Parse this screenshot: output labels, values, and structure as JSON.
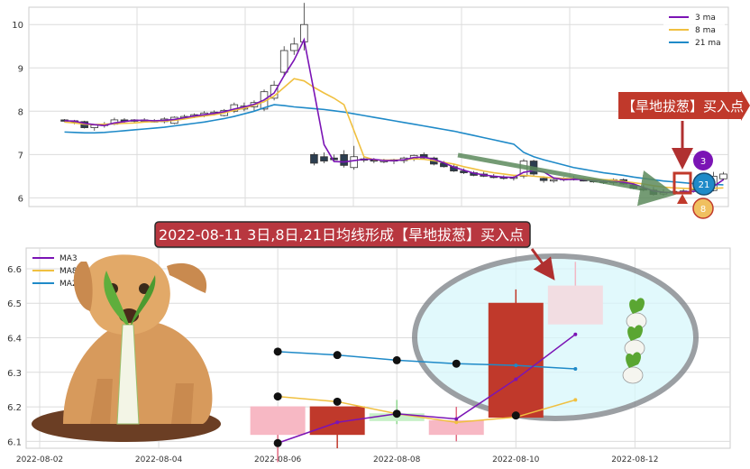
{
  "chart_data": [
    {
      "type": "candlestick",
      "ylim": [
        5.8,
        10.4
      ],
      "yticks": [
        "6",
        "7",
        "8",
        "9",
        "10"
      ],
      "grid": true,
      "legend": {
        "placement": "top-right",
        "entries": [
          "3 ma",
          "8 ma",
          "21 ma"
        ]
      },
      "colors": {
        "up": "#c0392b",
        "down": "#2c3e50",
        "ma3": "#7b14b5",
        "ma8": "#f0c040",
        "ma21": "#1f8ac8",
        "grid": "#dcdcdc"
      },
      "candles": [
        [
          7.8,
          7.82,
          7.75,
          7.78
        ],
        [
          7.78,
          7.8,
          7.7,
          7.76
        ],
        [
          7.76,
          7.78,
          7.6,
          7.62
        ],
        [
          7.62,
          7.7,
          7.55,
          7.68
        ],
        [
          7.68,
          7.75,
          7.62,
          7.7
        ],
        [
          7.7,
          7.85,
          7.68,
          7.8
        ],
        [
          7.8,
          7.84,
          7.72,
          7.78
        ],
        [
          7.78,
          7.82,
          7.74,
          7.8
        ],
        [
          7.8,
          7.84,
          7.76,
          7.78
        ],
        [
          7.78,
          7.82,
          7.74,
          7.76
        ],
        [
          7.76,
          7.86,
          7.72,
          7.82
        ],
        [
          7.72,
          7.88,
          7.7,
          7.86
        ],
        [
          7.86,
          7.92,
          7.82,
          7.88
        ],
        [
          7.88,
          7.95,
          7.84,
          7.92
        ],
        [
          7.92,
          8.0,
          7.86,
          7.96
        ],
        [
          7.96,
          8.02,
          7.9,
          7.98
        ],
        [
          7.9,
          8.05,
          7.88,
          8.02
        ],
        [
          8.0,
          8.2,
          7.96,
          8.15
        ],
        [
          8.05,
          8.2,
          8.0,
          8.12
        ],
        [
          8.1,
          8.25,
          8.0,
          8.2
        ],
        [
          8.05,
          8.5,
          8.0,
          8.45
        ],
        [
          8.3,
          8.7,
          8.25,
          8.6
        ],
        [
          8.9,
          9.5,
          8.8,
          9.4
        ],
        [
          9.4,
          9.7,
          9.3,
          9.55
        ],
        [
          9.6,
          10.5,
          9.4,
          10.0
        ],
        [
          7.0,
          7.05,
          6.75,
          6.8
        ],
        [
          6.95,
          7.05,
          6.8,
          6.85
        ],
        [
          6.92,
          7.0,
          6.85,
          6.88
        ],
        [
          7.0,
          7.1,
          6.7,
          6.75
        ],
        [
          6.7,
          7.2,
          6.65,
          6.95
        ],
        [
          6.9,
          6.95,
          6.82,
          6.88
        ],
        [
          6.88,
          6.92,
          6.8,
          6.85
        ],
        [
          6.85,
          6.9,
          6.8,
          6.86
        ],
        [
          6.85,
          6.9,
          6.78,
          6.88
        ],
        [
          6.86,
          6.95,
          6.8,
          6.92
        ],
        [
          6.92,
          7.0,
          6.85,
          6.98
        ],
        [
          7.0,
          7.05,
          6.9,
          6.92
        ],
        [
          6.92,
          6.95,
          6.75,
          6.78
        ],
        [
          6.8,
          6.85,
          6.7,
          6.72
        ],
        [
          6.72,
          6.78,
          6.6,
          6.62
        ],
        [
          6.62,
          6.68,
          6.55,
          6.58
        ],
        [
          6.58,
          6.62,
          6.5,
          6.52
        ],
        [
          6.55,
          6.6,
          6.48,
          6.5
        ],
        [
          6.5,
          6.55,
          6.45,
          6.48
        ],
        [
          6.48,
          6.52,
          6.42,
          6.45
        ],
        [
          6.45,
          6.5,
          6.4,
          6.48
        ],
        [
          6.5,
          6.9,
          6.45,
          6.85
        ],
        [
          6.85,
          6.88,
          6.5,
          6.55
        ],
        [
          6.45,
          6.5,
          6.35,
          6.4
        ],
        [
          6.4,
          6.45,
          6.35,
          6.42
        ],
        [
          6.42,
          6.48,
          6.38,
          6.45
        ],
        [
          6.45,
          6.5,
          6.4,
          6.42
        ],
        [
          6.42,
          6.46,
          6.38,
          6.4
        ],
        [
          6.4,
          6.45,
          6.35,
          6.38
        ],
        [
          6.38,
          6.42,
          6.32,
          6.35
        ],
        [
          6.35,
          6.45,
          6.3,
          6.42
        ],
        [
          6.42,
          6.45,
          6.3,
          6.32
        ],
        [
          6.3,
          6.35,
          6.2,
          6.22
        ],
        [
          6.22,
          6.3,
          6.15,
          6.18
        ],
        [
          6.18,
          6.25,
          6.05,
          6.08
        ],
        [
          6.1,
          6.2,
          6.05,
          6.12
        ],
        [
          6.12,
          6.18,
          6.08,
          6.15
        ],
        [
          6.12,
          6.2,
          6.1,
          6.16
        ],
        [
          6.16,
          6.22,
          6.12,
          6.18
        ],
        [
          6.1,
          6.25,
          6.08,
          6.2
        ],
        [
          6.17,
          6.6,
          6.15,
          6.5
        ],
        [
          6.44,
          6.6,
          6.4,
          6.55
        ]
      ],
      "ma3": [
        7.78,
        7.77,
        7.72,
        7.69,
        7.67,
        7.73,
        7.76,
        7.79,
        7.79,
        7.78,
        7.79,
        7.81,
        7.85,
        7.89,
        7.92,
        7.95,
        7.99,
        8.05,
        8.1,
        8.16,
        8.26,
        8.42,
        8.82,
        9.18,
        9.65,
        8.45,
        7.23,
        6.84,
        6.83,
        6.86,
        6.89,
        6.89,
        6.86,
        6.86,
        6.88,
        6.93,
        6.94,
        6.89,
        6.81,
        6.71,
        6.64,
        6.57,
        6.53,
        6.5,
        6.48,
        6.47,
        6.59,
        6.63,
        6.6,
        6.46,
        6.42,
        6.43,
        6.42,
        6.4,
        6.38,
        6.38,
        6.36,
        6.32,
        6.24,
        6.16,
        6.13,
        6.12,
        6.14,
        6.15,
        6.18,
        6.26,
        6.42
      ],
      "ma8": [
        7.75,
        7.73,
        7.7,
        7.69,
        7.7,
        7.71,
        7.72,
        7.73,
        7.75,
        7.76,
        7.77,
        7.79,
        7.82,
        7.86,
        7.89,
        7.92,
        7.96,
        8.02,
        8.07,
        8.14,
        8.22,
        8.35,
        8.55,
        8.75,
        8.7,
        8.55,
        8.42,
        8.3,
        8.15,
        7.55,
        6.95,
        6.88,
        6.87,
        6.87,
        6.88,
        6.9,
        6.89,
        6.86,
        6.82,
        6.78,
        6.72,
        6.67,
        6.62,
        6.58,
        6.55,
        6.52,
        6.52,
        6.5,
        6.48,
        6.46,
        6.45,
        6.44,
        6.44,
        6.43,
        6.42,
        6.41,
        6.38,
        6.35,
        6.32,
        6.28,
        6.25,
        6.23,
        6.22,
        6.21,
        6.21,
        6.22,
        6.23
      ],
      "ma21": [
        7.52,
        7.51,
        7.5,
        7.5,
        7.51,
        7.53,
        7.55,
        7.57,
        7.59,
        7.61,
        7.63,
        7.66,
        7.69,
        7.72,
        7.75,
        7.79,
        7.83,
        7.88,
        7.94,
        8.0,
        8.08,
        8.15,
        8.13,
        8.1,
        8.08,
        8.06,
        8.04,
        8.01,
        7.98,
        7.94,
        7.9,
        7.86,
        7.82,
        7.78,
        7.74,
        7.7,
        7.66,
        7.62,
        7.58,
        7.54,
        7.49,
        7.44,
        7.39,
        7.34,
        7.29,
        7.24,
        7.05,
        6.95,
        6.88,
        6.82,
        6.76,
        6.7,
        6.66,
        6.62,
        6.58,
        6.55,
        6.52,
        6.48,
        6.45,
        6.42,
        6.39,
        6.37,
        6.35,
        6.33,
        6.32,
        6.31,
        6.3
      ]
    },
    {
      "type": "candlestick",
      "ylim": [
        6.08,
        6.66
      ],
      "yticks": [
        "6.1",
        "6.2",
        "6.3",
        "6.4",
        "6.5",
        "6.6"
      ],
      "xticks": [
        "2022-08-02",
        "2022-08-04",
        "2022-08-06",
        "2022-08-08",
        "2022-08-10",
        "2022-08-12"
      ],
      "xlim": [
        0.0,
        11.6
      ],
      "grid": true,
      "legend": {
        "placement": "top-left",
        "entries": [
          "MA3",
          "MA8",
          "MA21"
        ]
      },
      "candles": [
        {
          "x": 4.0,
          "open": 6.2,
          "high": 6.2,
          "low": 6.04,
          "close": 6.12,
          "style": "down"
        },
        {
          "x": 5.0,
          "open": 6.12,
          "high": 6.2,
          "low": 6.08,
          "close": 6.2,
          "style": "up"
        },
        {
          "x": 6.0,
          "open": 6.16,
          "high": 6.22,
          "low": 6.15,
          "close": 6.18,
          "style": "down"
        },
        {
          "x": 7.0,
          "open": 6.12,
          "high": 6.2,
          "low": 6.1,
          "close": 6.16,
          "style": "down"
        },
        {
          "x": 8.0,
          "open": 6.17,
          "high": 6.54,
          "low": 6.17,
          "close": 6.5,
          "style": "up"
        },
        {
          "x": 9.0,
          "open": 6.55,
          "high": 6.62,
          "low": 6.44,
          "close": 6.44,
          "style": "down"
        }
      ],
      "ma3": {
        "x": [
          4.0,
          5.0,
          6.0,
          7.0,
          8.0,
          9.0
        ],
        "y": [
          6.095,
          6.155,
          6.18,
          6.165,
          6.28,
          6.41
        ]
      },
      "ma8": {
        "x": [
          4.0,
          5.0,
          6.0,
          7.0,
          8.0,
          9.0
        ],
        "y": [
          6.23,
          6.215,
          6.18,
          6.155,
          6.17,
          6.22
        ]
      },
      "ma21": {
        "x": [
          4.0,
          5.0,
          6.0,
          7.0,
          8.0,
          9.0
        ],
        "y": [
          6.36,
          6.35,
          6.335,
          6.325,
          6.32,
          6.31
        ]
      },
      "markers": [
        {
          "x": 4.0,
          "y": 6.095
        },
        {
          "x": 4.0,
          "y": 6.23
        },
        {
          "x": 4.0,
          "y": 6.36
        },
        {
          "x": 5.0,
          "y": 6.215
        },
        {
          "x": 5.0,
          "y": 6.35
        },
        {
          "x": 6.0,
          "y": 6.335
        },
        {
          "x": 6.0,
          "y": 6.18
        },
        {
          "x": 7.0,
          "y": 6.325
        },
        {
          "x": 8.0,
          "y": 6.175
        }
      ]
    }
  ],
  "annotations": {
    "buy_point_label": "【旱地拔葱】买入点",
    "ma_badges": [
      "3",
      "21",
      "8"
    ],
    "title_banner": "2022-08-11 3日,8日,21日均线形成【旱地拔葱】买入点"
  },
  "illustrations": [
    "dog-pulling-scallion",
    "scallion-icon"
  ]
}
